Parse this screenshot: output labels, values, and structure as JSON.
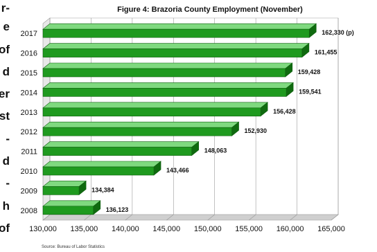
{
  "text_fragments": [
    "r-",
    "e",
    "of",
    "d",
    "er",
    "st",
    "-",
    "d",
    "-",
    "h",
    "of"
  ],
  "chart_data": {
    "type": "bar",
    "orientation": "horizontal",
    "title": "Figure 4: Brazoria County Employment (November)",
    "source": "Source: Bureau of Labor Statistics",
    "categories": [
      "2017",
      "2016",
      "2015",
      "2014",
      "2013",
      "2012",
      "2011",
      "2010",
      "2009",
      "2008"
    ],
    "values": [
      162330,
      161455,
      159428,
      159541,
      156428,
      152930,
      148063,
      143466,
      134384,
      136123
    ],
    "data_labels": [
      "162,330 (p)",
      "161,455",
      "159,428",
      "159,541",
      "156,428",
      "152,930",
      "148,063",
      "143,466",
      "134,384",
      "136,123"
    ],
    "xlim": [
      130000,
      165000
    ],
    "xticks": [
      "130,000",
      "135,000",
      "140,000",
      "145,000",
      "150,000",
      "155,000",
      "160,000",
      "165,000"
    ],
    "bar_color": "#1f9a1f",
    "grid": true
  }
}
